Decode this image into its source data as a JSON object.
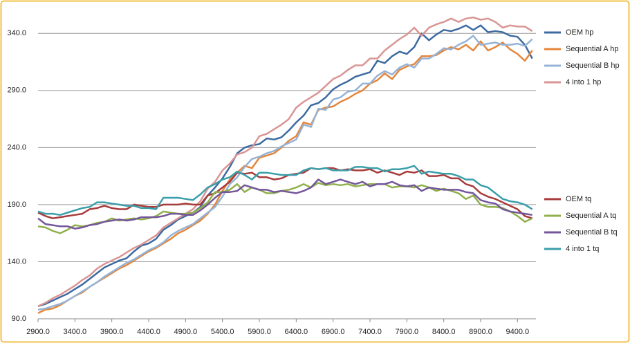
{
  "chart_data": {
    "type": "line",
    "x": [
      2900,
      3000,
      3100,
      3200,
      3300,
      3400,
      3500,
      3600,
      3700,
      3800,
      3900,
      4000,
      4100,
      4200,
      4300,
      4400,
      4500,
      4600,
      4700,
      4800,
      4900,
      5000,
      5100,
      5200,
      5300,
      5400,
      5500,
      5600,
      5700,
      5800,
      5900,
      6000,
      6100,
      6200,
      6300,
      6400,
      6500,
      6600,
      6700,
      6800,
      6900,
      7000,
      7100,
      7200,
      7300,
      7400,
      7500,
      7600,
      7700,
      7800,
      7900,
      8000,
      8100,
      8200,
      8300,
      8400,
      8500,
      8600,
      8700,
      8800,
      8900,
      9000,
      9100,
      9200,
      9300,
      9400,
      9500,
      9600
    ],
    "xlim": [
      2900,
      9650
    ],
    "xticks": [
      {
        "value": 2900,
        "label": "2900.0"
      },
      {
        "value": 3400,
        "label": "3400.0"
      },
      {
        "value": 3900,
        "label": "3900.0"
      },
      {
        "value": 4400,
        "label": "4400.0"
      },
      {
        "value": 4900,
        "label": "4900.0"
      },
      {
        "value": 5400,
        "label": "5400.0"
      },
      {
        "value": 5900,
        "label": "5900.0"
      },
      {
        "value": 6400,
        "label": "6400.0"
      },
      {
        "value": 6900,
        "label": "6900.0"
      },
      {
        "value": 7400,
        "label": "7400.0"
      },
      {
        "value": 7900,
        "label": "7900.0"
      },
      {
        "value": 8400,
        "label": "8400.0"
      },
      {
        "value": 8900,
        "label": "8900.0"
      },
      {
        "value": 9400,
        "label": "9400.0"
      }
    ],
    "ylim": [
      90,
      365
    ],
    "yticks": [
      {
        "value": 90,
        "label": "90.0"
      },
      {
        "value": 140,
        "label": "140.0"
      },
      {
        "value": 190,
        "label": "190.0"
      },
      {
        "value": 240,
        "label": "240.0"
      },
      {
        "value": 290,
        "label": "290.0"
      },
      {
        "value": 340,
        "label": "340.0"
      }
    ],
    "grid": true,
    "legend": "right",
    "series": [
      {
        "name": "OEM hp",
        "color": "#3d6aa0",
        "values": [
          101,
          103,
          106,
          109,
          112,
          116,
          120,
          125,
          130,
          135,
          138,
          141,
          143,
          149,
          154,
          156,
          160,
          168,
          172,
          177,
          180,
          183,
          188,
          198,
          205,
          213,
          223,
          235,
          240,
          242,
          243,
          248,
          247,
          249,
          255,
          262,
          268,
          277,
          279,
          284,
          291,
          295,
          298,
          302,
          304,
          306,
          316,
          314,
          320,
          324,
          322,
          328,
          340,
          334,
          339,
          343,
          342,
          344,
          347,
          343,
          347,
          341,
          342,
          341,
          338,
          337,
          330,
          318
        ]
      },
      {
        "name": "Sequential A hp",
        "color": "#e5853a",
        "values": [
          95,
          98,
          99,
          102,
          106,
          110,
          113,
          118,
          122,
          126,
          130,
          134,
          137,
          141,
          145,
          149,
          152,
          156,
          160,
          165,
          168,
          172,
          176,
          182,
          190,
          202,
          212,
          218,
          224,
          222,
          231,
          233,
          235,
          240,
          246,
          250,
          262,
          260,
          273,
          275,
          276,
          280,
          283,
          287,
          290,
          296,
          299,
          305,
          300,
          308,
          311,
          313,
          320,
          320,
          321,
          325,
          328,
          326,
          330,
          325,
          333,
          325,
          328,
          332,
          326,
          322,
          316,
          325
        ]
      },
      {
        "name": "Sequential B hp",
        "color": "#95b3d7",
        "values": [
          98,
          99,
          101,
          103,
          106,
          110,
          114,
          118,
          122,
          127,
          131,
          135,
          139,
          142,
          146,
          150,
          153,
          157,
          163,
          167,
          170,
          173,
          178,
          183,
          188,
          197,
          208,
          214,
          223,
          230,
          232,
          235,
          237,
          241,
          244,
          247,
          260,
          258,
          274,
          273,
          282,
          284,
          289,
          290,
          296,
          296,
          303,
          307,
          304,
          310,
          313,
          310,
          318,
          318,
          322,
          327,
          326,
          330,
          333,
          338,
          330,
          331,
          332,
          330,
          330,
          331,
          329,
          335
        ]
      },
      {
        "name": "4 into 1 hp",
        "color": "#d99594",
        "values": [
          101,
          104,
          108,
          111,
          115,
          119,
          124,
          128,
          134,
          138,
          141,
          144,
          148,
          152,
          155,
          159,
          163,
          170,
          174,
          178,
          182,
          186,
          193,
          204,
          210,
          220,
          226,
          234,
          236,
          240,
          250,
          252,
          256,
          260,
          265,
          275,
          280,
          284,
          288,
          294,
          300,
          303,
          308,
          312,
          312,
          318,
          318,
          325,
          330,
          335,
          339,
          345,
          338,
          345,
          348,
          350,
          353,
          350,
          353,
          354,
          352,
          353,
          350,
          345,
          347,
          346,
          346,
          342
        ]
      },
      {
        "name": "OEM tq",
        "color": "#a83b3b",
        "values": [
          183,
          180,
          178,
          179,
          180,
          181,
          182,
          186,
          187,
          189,
          187,
          186,
          186,
          190,
          189,
          188,
          188,
          190,
          190,
          190,
          191,
          190,
          190,
          198,
          200,
          205,
          210,
          218,
          217,
          218,
          214,
          214,
          212,
          213,
          216,
          217,
          218,
          222,
          221,
          222,
          222,
          220,
          221,
          220,
          220,
          221,
          218,
          220,
          218,
          216,
          219,
          218,
          220,
          215,
          215,
          216,
          213,
          213,
          208,
          206,
          200,
          197,
          195,
          192,
          189,
          186,
          180,
          178
        ]
      },
      {
        "name": "Sequential A tq",
        "color": "#8fb04a",
        "values": [
          171,
          170,
          167,
          165,
          168,
          172,
          171,
          172,
          174,
          175,
          178,
          176,
          177,
          178,
          177,
          178,
          180,
          184,
          183,
          182,
          182,
          183,
          187,
          192,
          201,
          201,
          203,
          208,
          201,
          205,
          203,
          200,
          200,
          202,
          203,
          205,
          208,
          205,
          209,
          207,
          208,
          207,
          208,
          206,
          207,
          208,
          208,
          208,
          205,
          206,
          206,
          205,
          207,
          205,
          202,
          204,
          202,
          200,
          195,
          198,
          190,
          188,
          188,
          187,
          184,
          180,
          175,
          178
        ]
      },
      {
        "name": "Sequential B tq",
        "color": "#74569a",
        "values": [
          178,
          173,
          172,
          171,
          171,
          169,
          170,
          172,
          173,
          175,
          176,
          177,
          176,
          177,
          179,
          179,
          179,
          180,
          182,
          182,
          181,
          181,
          185,
          190,
          196,
          201,
          201,
          202,
          207,
          205,
          203,
          203,
          201,
          202,
          201,
          200,
          202,
          205,
          212,
          208,
          210,
          212,
          210,
          208,
          210,
          206,
          208,
          208,
          210,
          207,
          206,
          207,
          202,
          205,
          204,
          203,
          203,
          203,
          201,
          200,
          194,
          192,
          191,
          186,
          184,
          183,
          182,
          181
        ]
      },
      {
        "name": "4 into 1 tq",
        "color": "#3a9eaa",
        "values": [
          184,
          182,
          182,
          181,
          183,
          185,
          187,
          188,
          192,
          192,
          191,
          190,
          189,
          189,
          187,
          187,
          186,
          196,
          196,
          196,
          195,
          194,
          199,
          205,
          208,
          212,
          214,
          219,
          216,
          212,
          218,
          218,
          217,
          216,
          216,
          216,
          220,
          222,
          221,
          222,
          220,
          220,
          220,
          223,
          223,
          222,
          222,
          219,
          221,
          221,
          222,
          224,
          217,
          219,
          218,
          217,
          217,
          215,
          212,
          212,
          207,
          205,
          200,
          195,
          193,
          192,
          190,
          186
        ]
      }
    ]
  }
}
